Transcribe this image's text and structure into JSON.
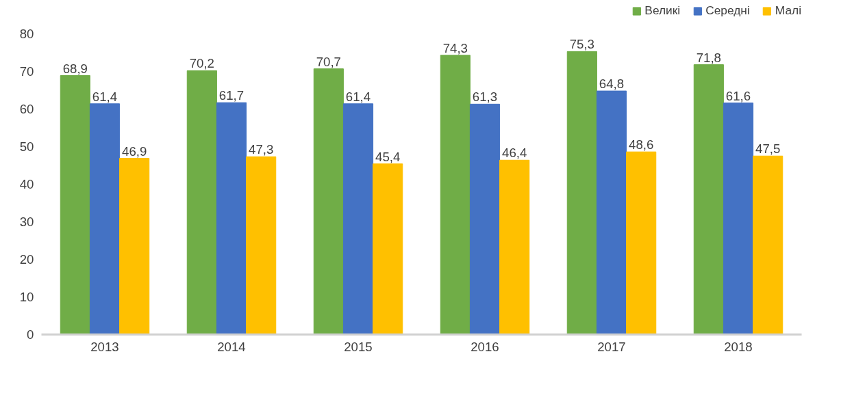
{
  "chart_data": {
    "type": "bar",
    "categories": [
      "2013",
      "2014",
      "2015",
      "2016",
      "2017",
      "2018"
    ],
    "series": [
      {
        "name": "Великі",
        "color": "#70ad47",
        "values": [
          68.9,
          70.2,
          70.7,
          74.3,
          75.3,
          71.8
        ],
        "value_labels": [
          "68,9",
          "70,2",
          "70,7",
          "74,3",
          "75,3",
          "71,8"
        ]
      },
      {
        "name": "Середні",
        "color": "#4472c4",
        "values": [
          61.4,
          61.7,
          61.4,
          61.3,
          64.8,
          61.6
        ],
        "value_labels": [
          "61,4",
          "61,7",
          "61,4",
          "61,3",
          "64,8",
          "61,6"
        ]
      },
      {
        "name": "Малі",
        "color": "#ffc000",
        "values": [
          46.9,
          47.3,
          45.4,
          46.4,
          48.6,
          47.5
        ],
        "value_labels": [
          "46,9",
          "47,3",
          "45,4",
          "46,4",
          "48,6",
          "47,5"
        ]
      }
    ],
    "ylim": [
      0,
      80
    ],
    "yticks": [
      0,
      10,
      20,
      30,
      40,
      50,
      60,
      70,
      80
    ],
    "grid": false,
    "legend": "top right"
  }
}
